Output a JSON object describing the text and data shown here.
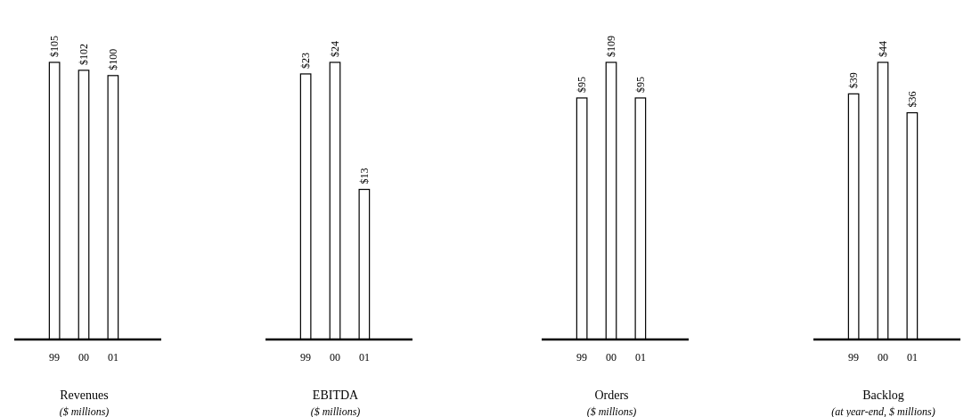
{
  "chart_data": [
    {
      "type": "bar",
      "title": "Revenues",
      "subtitle": "($ millions)",
      "categories": [
        "99",
        "00",
        "01"
      ],
      "values": [
        105,
        102,
        100
      ],
      "value_labels": [
        "$105",
        "$102",
        "$100"
      ],
      "color": "#ffffff"
    },
    {
      "type": "bar",
      "title": "EBITDA",
      "subtitle": "($ millions)",
      "categories": [
        "99",
        "00",
        "01"
      ],
      "values": [
        23,
        24,
        13
      ],
      "value_labels": [
        "$23",
        "$24",
        "$13"
      ],
      "color": "#ffffff"
    },
    {
      "type": "bar",
      "title": "Orders",
      "subtitle": "($ millions)",
      "categories": [
        "99",
        "00",
        "01"
      ],
      "values": [
        95,
        109,
        95
      ],
      "value_labels": [
        "$95",
        "$109",
        "$95"
      ],
      "color": "#ffffff"
    },
    {
      "type": "bar",
      "title": "Backlog",
      "subtitle": "(at year-end, $ millions)",
      "categories": [
        "99",
        "00",
        "01"
      ],
      "values": [
        39,
        44,
        36
      ],
      "value_labels": [
        "$39",
        "$44",
        "$36"
      ],
      "color": "#ffffff"
    }
  ]
}
